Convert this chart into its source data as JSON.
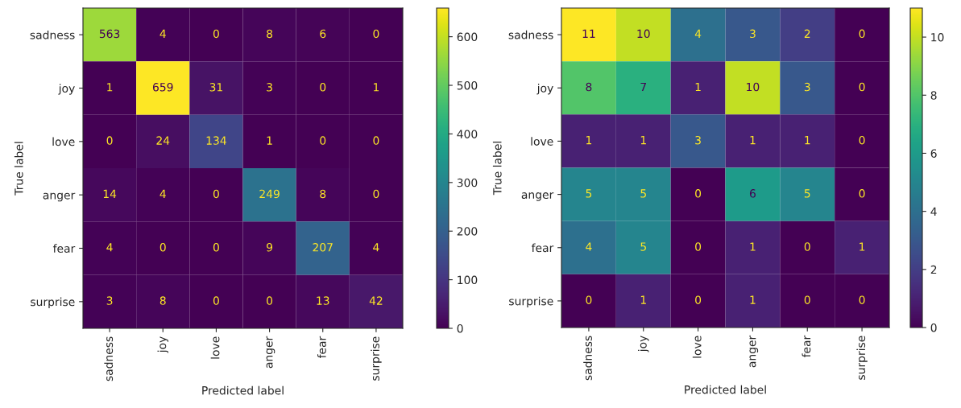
{
  "chart_data": [
    {
      "type": "heatmap",
      "xlabel": "Predicted label",
      "ylabel": "True label",
      "data_labels": true,
      "categories": [
        "sadness",
        "joy",
        "love",
        "anger",
        "fear",
        "surprise"
      ],
      "y_categories": [
        "sadness",
        "joy",
        "love",
        "anger",
        "fear",
        "surprise"
      ],
      "cells": [
        [
          563,
          4,
          0,
          8,
          6,
          0
        ],
        [
          1,
          659,
          31,
          3,
          0,
          1
        ],
        [
          0,
          24,
          134,
          1,
          0,
          0
        ],
        [
          14,
          4,
          0,
          249,
          8,
          0
        ],
        [
          4,
          0,
          0,
          9,
          207,
          4
        ],
        [
          3,
          8,
          0,
          0,
          13,
          42
        ]
      ],
      "clim": [
        0,
        659
      ],
      "cticks": [
        0,
        100,
        200,
        300,
        400,
        500,
        600
      ]
    },
    {
      "type": "heatmap",
      "xlabel": "Predicted label",
      "ylabel": "True label",
      "data_labels": true,
      "categories": [
        "sadness",
        "joy",
        "love",
        "anger",
        "fear",
        "surprise"
      ],
      "y_categories": [
        "sadness",
        "joy",
        "love",
        "anger",
        "fear",
        "surprise"
      ],
      "cells": [
        [
          11,
          10,
          4,
          3,
          2,
          0
        ],
        [
          8,
          7,
          1,
          10,
          3,
          0
        ],
        [
          1,
          1,
          3,
          1,
          1,
          0
        ],
        [
          5,
          5,
          0,
          6,
          5,
          0
        ],
        [
          4,
          5,
          0,
          1,
          0,
          1
        ],
        [
          0,
          1,
          0,
          1,
          0,
          0
        ]
      ],
      "clim": [
        0,
        11
      ],
      "cticks": [
        0,
        2,
        4,
        6,
        8,
        10
      ]
    }
  ]
}
